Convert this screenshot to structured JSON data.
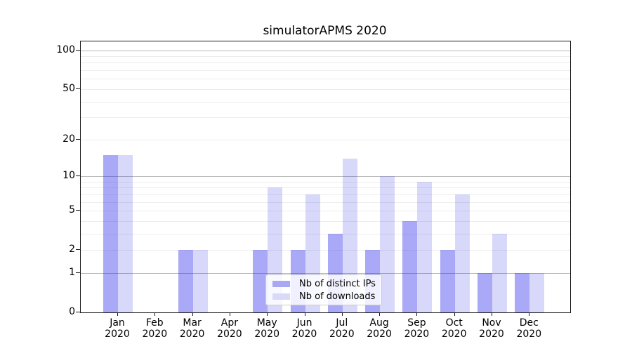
{
  "chart_data": {
    "type": "bar",
    "title": "simulatorAPMS 2020",
    "year_label": "2020",
    "categories": [
      "Jan",
      "Feb",
      "Mar",
      "Apr",
      "May",
      "Jun",
      "Jul",
      "Aug",
      "Sep",
      "Oct",
      "Nov",
      "Dec"
    ],
    "series": [
      {
        "name": "Nb of distinct IPs",
        "swatch_color": "#a9a9f3",
        "bar_color": "rgba(40,40,235,0.40)",
        "values": [
          15,
          0,
          2,
          0,
          2,
          2,
          3,
          2,
          4,
          2,
          1,
          1
        ]
      },
      {
        "name": "Nb of downloads",
        "swatch_color": "#d9d9f8",
        "bar_color": "rgba(40,40,235,0.18)",
        "values": [
          15,
          0,
          2,
          0,
          8,
          7,
          14,
          10,
          9,
          7,
          3,
          1
        ]
      }
    ],
    "xlabel": "",
    "ylabel": "",
    "yscale": "log1p",
    "ylim": [
      0,
      117
    ],
    "yticks": [
      100,
      50,
      20,
      10,
      5,
      2,
      1,
      0
    ],
    "grid": {
      "major": [
        100,
        10,
        1
      ],
      "minor": [
        2,
        3,
        4,
        5,
        6,
        7,
        8,
        9,
        20,
        30,
        40,
        50,
        60,
        70,
        80,
        90
      ]
    },
    "legend_position": "lower center"
  }
}
